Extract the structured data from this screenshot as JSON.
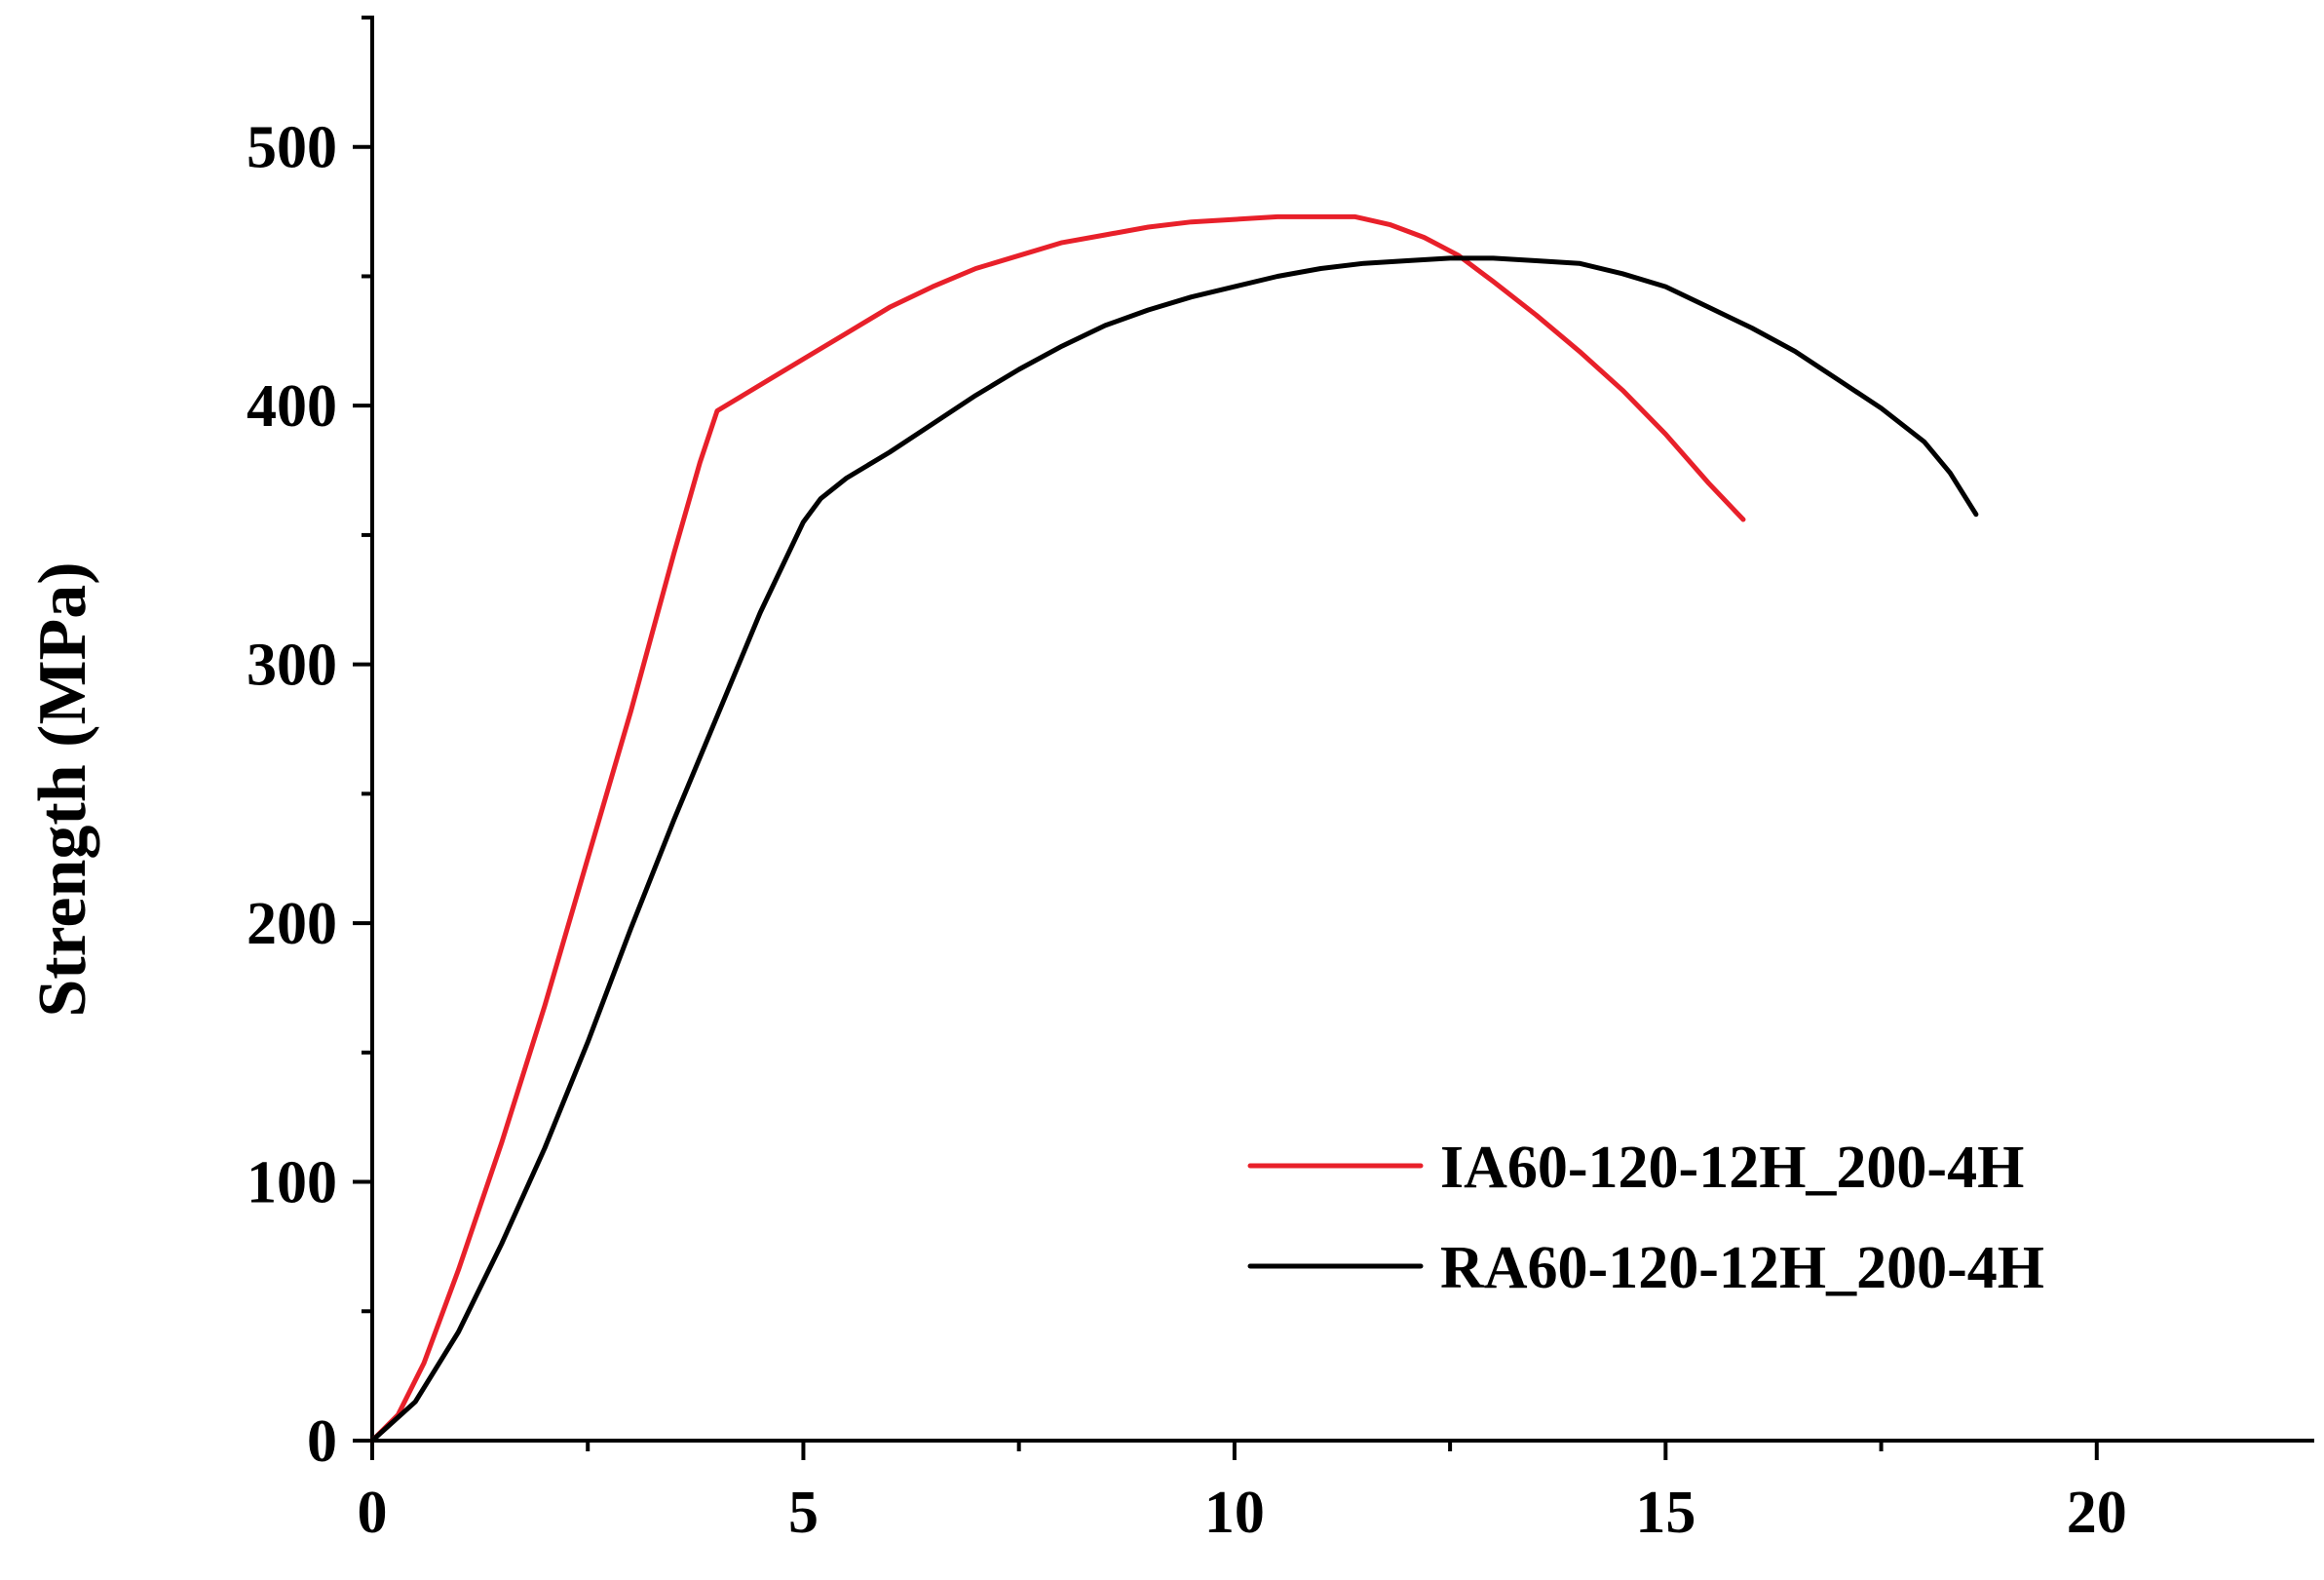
{
  "chart_data": {
    "type": "line",
    "title": "",
    "xlabel": "",
    "ylabel": "Strength (MPa)",
    "xlim": [
      0,
      22.5
    ],
    "ylim": [
      0,
      550
    ],
    "x_major_ticks": [
      0,
      5,
      10,
      15,
      20
    ],
    "x_minor_ticks": [
      2.5,
      7.5,
      12.5,
      17.5
    ],
    "y_major_ticks": [
      0,
      100,
      200,
      300,
      400,
      500
    ],
    "y_minor_ticks": [
      50,
      150,
      250,
      350,
      450,
      550
    ],
    "x_tick_labels": [
      "0",
      "5",
      "10",
      "15",
      "20"
    ],
    "y_tick_labels": [
      "0",
      "100",
      "200",
      "300",
      "400",
      "500"
    ],
    "grid": false,
    "legend_position": "bottom-right",
    "series": [
      {
        "name": "IA60-120-12H_200-4H",
        "color": "#e8202a",
        "x": [
          0,
          0.3,
          0.6,
          1.0,
          1.5,
          2.0,
          2.5,
          3.0,
          3.5,
          3.8,
          4.0,
          4.2,
          4.6,
          5.0,
          5.5,
          6.0,
          6.5,
          7.0,
          7.5,
          8.0,
          8.5,
          9.0,
          9.5,
          10.0,
          10.5,
          11.0,
          11.4,
          11.8,
          12.2,
          12.6,
          13.0,
          13.5,
          14.0,
          14.5,
          15.0,
          15.5,
          15.9
        ],
        "y": [
          0,
          10,
          30,
          66,
          115,
          168,
          225,
          282,
          343,
          378,
          398,
          402,
          410,
          418,
          428,
          438,
          446,
          453,
          458,
          463,
          466,
          469,
          471,
          472,
          473,
          473,
          473,
          470,
          465,
          458,
          448,
          435,
          421,
          406,
          389,
          370,
          356
        ]
      },
      {
        "name": "RA60-120-12H_200-4H",
        "color": "#000000",
        "x": [
          0,
          0.5,
          1.0,
          1.5,
          2.0,
          2.5,
          3.0,
          3.5,
          4.0,
          4.5,
          5.0,
          5.2,
          5.5,
          6.0,
          6.5,
          7.0,
          7.5,
          8.0,
          8.5,
          9.0,
          9.5,
          10.0,
          10.5,
          11.0,
          11.5,
          12.0,
          12.5,
          13.0,
          13.5,
          14.0,
          14.5,
          15.0,
          15.5,
          16.0,
          16.5,
          17.0,
          17.5,
          18.0,
          18.3,
          18.6
        ],
        "y": [
          0,
          15,
          42,
          76,
          113,
          154,
          198,
          240,
          280,
          320,
          355,
          364,
          372,
          382,
          393,
          404,
          414,
          423,
          431,
          437,
          442,
          446,
          450,
          453,
          455,
          456,
          457,
          457,
          456,
          455,
          451,
          446,
          438,
          430,
          421,
          410,
          399,
          386,
          374,
          358
        ]
      }
    ]
  }
}
